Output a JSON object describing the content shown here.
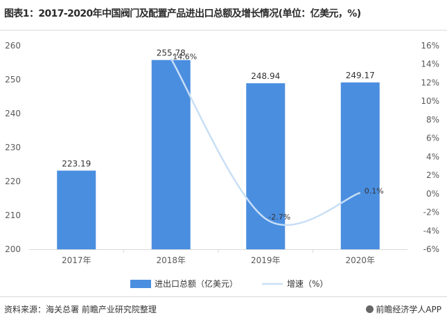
{
  "title": "图表1：2017-2020年中国阀门及配置产品进出口总额及增长情况(单位：亿美元，%)",
  "chart_data": {
    "type": "bar",
    "categories": [
      "2017年",
      "2018年",
      "2019年",
      "2020年"
    ],
    "series": [
      {
        "name": "进出口总额（亿美元）",
        "type": "bar",
        "axis": "left",
        "values": [
          223.19,
          255.78,
          248.94,
          249.17
        ],
        "labels": [
          "223.19",
          "255.78",
          "248.94",
          "249.17"
        ],
        "color": "#4a8ee0"
      },
      {
        "name": "增速（%）",
        "type": "line",
        "axis": "right",
        "values": [
          null,
          14.6,
          -2.7,
          0.1
        ],
        "labels": [
          "",
          "14.6%",
          "-2.7%",
          "0.1%"
        ],
        "color": "#c8dff5"
      }
    ],
    "y_left": {
      "min": 200,
      "max": 260,
      "ticks": [
        "200",
        "210",
        "220",
        "230",
        "240",
        "250",
        "260"
      ]
    },
    "y_right": {
      "min": -6,
      "max": 16,
      "ticks": [
        "-6%",
        "-4%",
        "-2%",
        "0%",
        "2%",
        "4%",
        "6%",
        "8%",
        "10%",
        "12%",
        "14%",
        "16%"
      ]
    },
    "legend_position": "bottom",
    "grid": false
  },
  "source": "资料来源：海关总署 前瞻产业研究院整理",
  "brand": "前瞻经济学人APP",
  "colors": {
    "bar": "#4a8ee0",
    "line": "#c8dff5",
    "axis": "#d9d9d9"
  },
  "icons": {
    "brand": "qianzhan-logo-icon"
  }
}
